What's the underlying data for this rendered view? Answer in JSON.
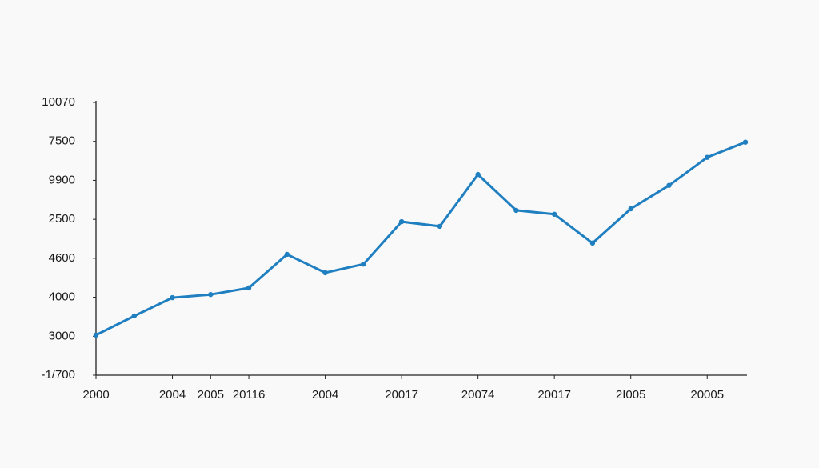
{
  "chart_data": {
    "type": "line",
    "categories": [
      "2000",
      null,
      "2004",
      "2005",
      "20116",
      null,
      "2004",
      null,
      "20017",
      null,
      "20074",
      null,
      "20017",
      null,
      "2I005",
      null,
      "20005",
      null
    ],
    "values": [
      1.03,
      1.52,
      1.99,
      2.07,
      2.24,
      3.1,
      2.63,
      2.85,
      3.94,
      3.82,
      5.15,
      4.23,
      4.13,
      3.39,
      4.27,
      4.87,
      5.59,
      5.98
    ],
    "color": "#1f7fc0",
    "ylim": [
      0,
      7
    ],
    "yticks": [
      {
        "value": 0,
        "label": "-1/700"
      },
      {
        "value": 1,
        "label": "3000"
      },
      {
        "value": 2,
        "label": "4000"
      },
      {
        "value": 3,
        "label": "4600"
      },
      {
        "value": 4,
        "label": "2500"
      },
      {
        "value": 5,
        "label": "9900"
      },
      {
        "value": 6,
        "label": "7500"
      },
      {
        "value": 7,
        "label": "10070"
      }
    ],
    "grid": false
  }
}
